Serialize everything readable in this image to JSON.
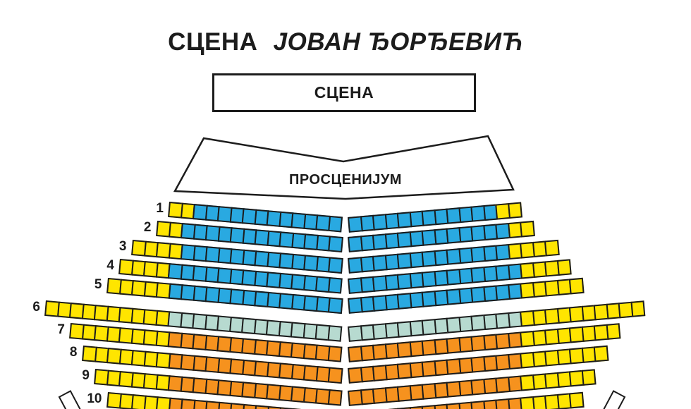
{
  "title": {
    "prefix": "СЦЕНА",
    "name": "ЈОВАН ЂОРЂЕВИЋ"
  },
  "stage": {
    "label": "СЦЕНА"
  },
  "proscenium": {
    "label": "ПРОСЦЕНИЈУМ"
  },
  "colors": {
    "yellow": "#FFE500",
    "blue": "#29A9E1",
    "teal": "#B7DAD0",
    "orange": "#F6921E",
    "outline": "#1C1C1C",
    "background": "#FFFFFF"
  },
  "seating": {
    "layout_note": "Each numbered row is a shallow V (chevron) of seat squares split by a center aisle; outer seats are yellow, middle seats colored per row",
    "rows": [
      {
        "number": "1",
        "outer_yellow_per_side": 2,
        "middle_per_side": 12,
        "middle_color": "blue"
      },
      {
        "number": "2",
        "outer_yellow_per_side": 2,
        "middle_per_side": 13,
        "middle_color": "blue"
      },
      {
        "number": "3",
        "outer_yellow_per_side": 4,
        "middle_per_side": 13,
        "middle_color": "blue"
      },
      {
        "number": "4",
        "outer_yellow_per_side": 4,
        "middle_per_side": 14,
        "middle_color": "blue"
      },
      {
        "number": "5",
        "outer_yellow_per_side": 5,
        "middle_per_side": 14,
        "middle_color": "blue"
      },
      {
        "number": "6",
        "outer_yellow_per_side": 10,
        "middle_per_side": 14,
        "middle_color": "teal"
      },
      {
        "number": "7",
        "outer_yellow_per_side": 8,
        "middle_per_side": 14,
        "middle_color": "orange"
      },
      {
        "number": "8",
        "outer_yellow_per_side": 7,
        "middle_per_side": 14,
        "middle_color": "orange"
      },
      {
        "number": "9",
        "outer_yellow_per_side": 6,
        "middle_per_side": 14,
        "middle_color": "orange"
      },
      {
        "number": "10",
        "outer_yellow_per_side": 5,
        "middle_per_side": 14,
        "middle_color": "orange"
      }
    ]
  }
}
